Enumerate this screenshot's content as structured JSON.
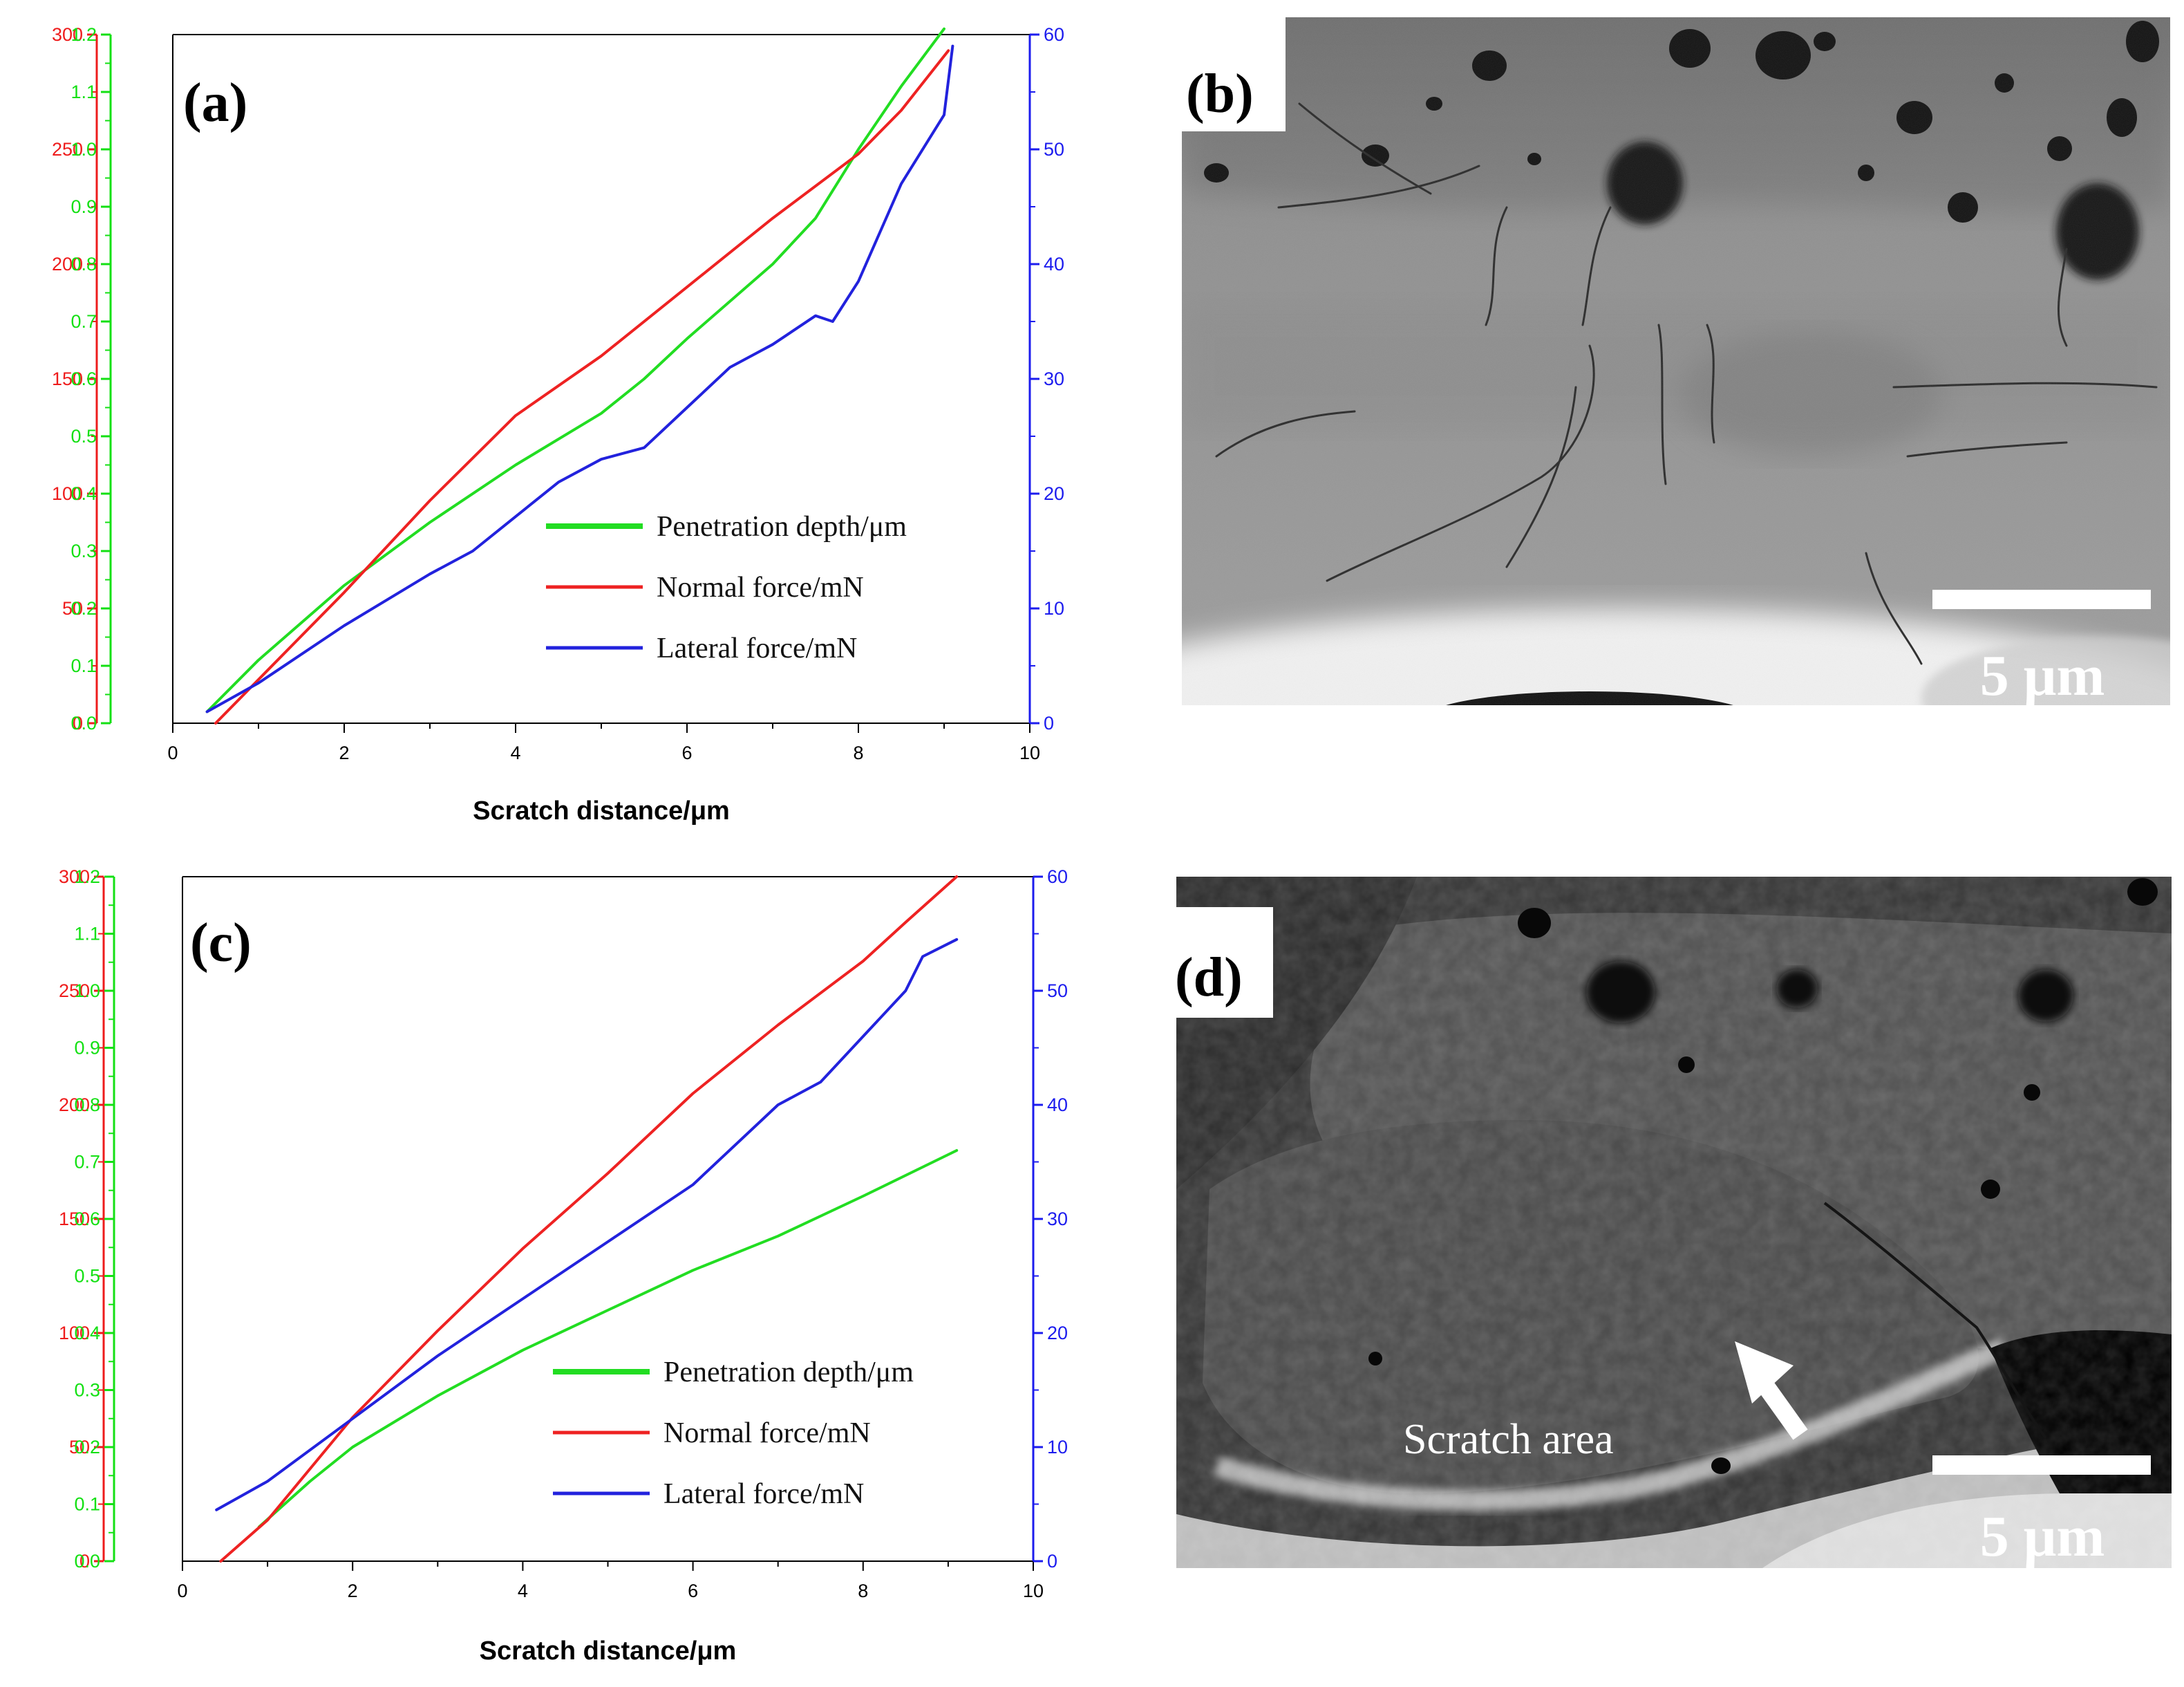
{
  "chart_data": [
    {
      "type": "line",
      "panel": "(a)",
      "xlabel": "Scratch distance/μm",
      "xlim": [
        0,
        10
      ],
      "xticks": [
        0,
        2,
        4,
        6,
        8,
        10
      ],
      "axes": {
        "left_outer": {
          "range": [
            0,
            300
          ],
          "ticks": [
            0,
            50,
            100,
            150,
            200,
            250,
            300
          ],
          "color": "#ee1c1c"
        },
        "left_inner": {
          "range": [
            0,
            1.2
          ],
          "ticks": [
            0.0,
            0.1,
            0.2,
            0.3,
            0.4,
            0.5,
            0.6,
            0.7,
            0.8,
            0.9,
            1.0,
            1.1,
            1.2
          ],
          "color": "#14e014"
        },
        "right": {
          "range": [
            0,
            60
          ],
          "ticks": [
            0,
            10,
            20,
            30,
            40,
            50,
            60
          ],
          "color": "#1c1cee"
        }
      },
      "legend": [
        "Penetration depth/μm",
        "Normal force/mN",
        "Lateral force/mN"
      ],
      "series": [
        {
          "name": "Penetration depth/μm",
          "axis": "left_inner",
          "color": "#22dd22",
          "x": [
            0.4,
            1,
            2,
            3,
            4,
            5,
            5.5,
            6,
            7,
            7.5,
            8,
            8.5,
            9
          ],
          "y": [
            0.02,
            0.11,
            0.24,
            0.35,
            0.45,
            0.54,
            0.6,
            0.67,
            0.8,
            0.88,
            1.0,
            1.11,
            1.21
          ]
        },
        {
          "name": "Normal force/mN",
          "axis": "left_outer",
          "color": "#ee2222",
          "x": [
            0.5,
            1,
            2,
            3,
            4,
            5,
            6,
            7,
            8,
            8.5,
            9.05
          ],
          "y": [
            0,
            19,
            57,
            97,
            134,
            160,
            190,
            220,
            248,
            267,
            293
          ]
        },
        {
          "name": "Lateral force/mN",
          "axis": "right",
          "color": "#2222dd",
          "x": [
            0.4,
            1,
            2,
            3,
            3.5,
            4,
            4.5,
            5,
            5.5,
            6,
            6.5,
            7,
            7.5,
            7.7,
            8,
            8.5,
            9,
            9.1
          ],
          "y": [
            1,
            3.5,
            8.5,
            13,
            15,
            18,
            21,
            23,
            24,
            27.5,
            31,
            33,
            35.5,
            35,
            38.5,
            47,
            53,
            59
          ]
        }
      ]
    },
    {
      "type": "line",
      "panel": "(c)",
      "xlabel": "Scratch distance/μm",
      "xlim": [
        0,
        10
      ],
      "xticks": [
        0,
        2,
        4,
        6,
        8,
        10
      ],
      "axes": {
        "left_outer": {
          "range": [
            0,
            300
          ],
          "ticks": [
            0,
            50,
            100,
            150,
            200,
            250,
            300
          ],
          "color": "#ee1c1c"
        },
        "left_inner": {
          "range": [
            0,
            1.2
          ],
          "ticks": [
            0.0,
            0.1,
            0.2,
            0.3,
            0.4,
            0.5,
            0.6,
            0.7,
            0.8,
            0.9,
            1.0,
            1.1,
            1.2
          ],
          "color": "#14e014"
        },
        "right": {
          "range": [
            0,
            60
          ],
          "ticks": [
            0,
            10,
            20,
            30,
            40,
            50,
            60
          ],
          "color": "#1c1cee"
        }
      },
      "legend": [
        "Penetration depth/μm",
        "Normal force/mN",
        "Lateral force/mN"
      ],
      "series": [
        {
          "name": "Penetration depth/μm",
          "axis": "left_inner",
          "color": "#22dd22",
          "x": [
            0.9,
            1.5,
            2,
            3,
            4,
            5,
            6,
            7,
            8,
            9.1
          ],
          "y": [
            0.06,
            0.14,
            0.2,
            0.29,
            0.37,
            0.44,
            0.51,
            0.57,
            0.64,
            0.72
          ]
        },
        {
          "name": "Normal force/mN",
          "axis": "left_outer",
          "color": "#ee2222",
          "x": [
            0.45,
            1,
            2,
            3,
            4,
            5,
            6,
            7,
            8,
            8.5,
            9.1
          ],
          "y": [
            0,
            18,
            63,
            101,
            137,
            170,
            205,
            235,
            263,
            280,
            300
          ]
        },
        {
          "name": "Lateral force/mN",
          "axis": "right",
          "color": "#2222dd",
          "x": [
            0.4,
            1,
            2,
            3,
            4,
            5,
            6,
            7,
            7.5,
            8,
            8.5,
            8.7,
            9.1
          ],
          "y": [
            4.5,
            7,
            12.5,
            18,
            23,
            28,
            33,
            40,
            42,
            46,
            50,
            53,
            54.5
          ]
        }
      ]
    }
  ],
  "micrographs": [
    {
      "panel": "(b)",
      "scale_label": "5 μm",
      "annotation": ""
    },
    {
      "panel": "(d)",
      "scale_label": "5 μm",
      "annotation": "Scratch area"
    }
  ]
}
